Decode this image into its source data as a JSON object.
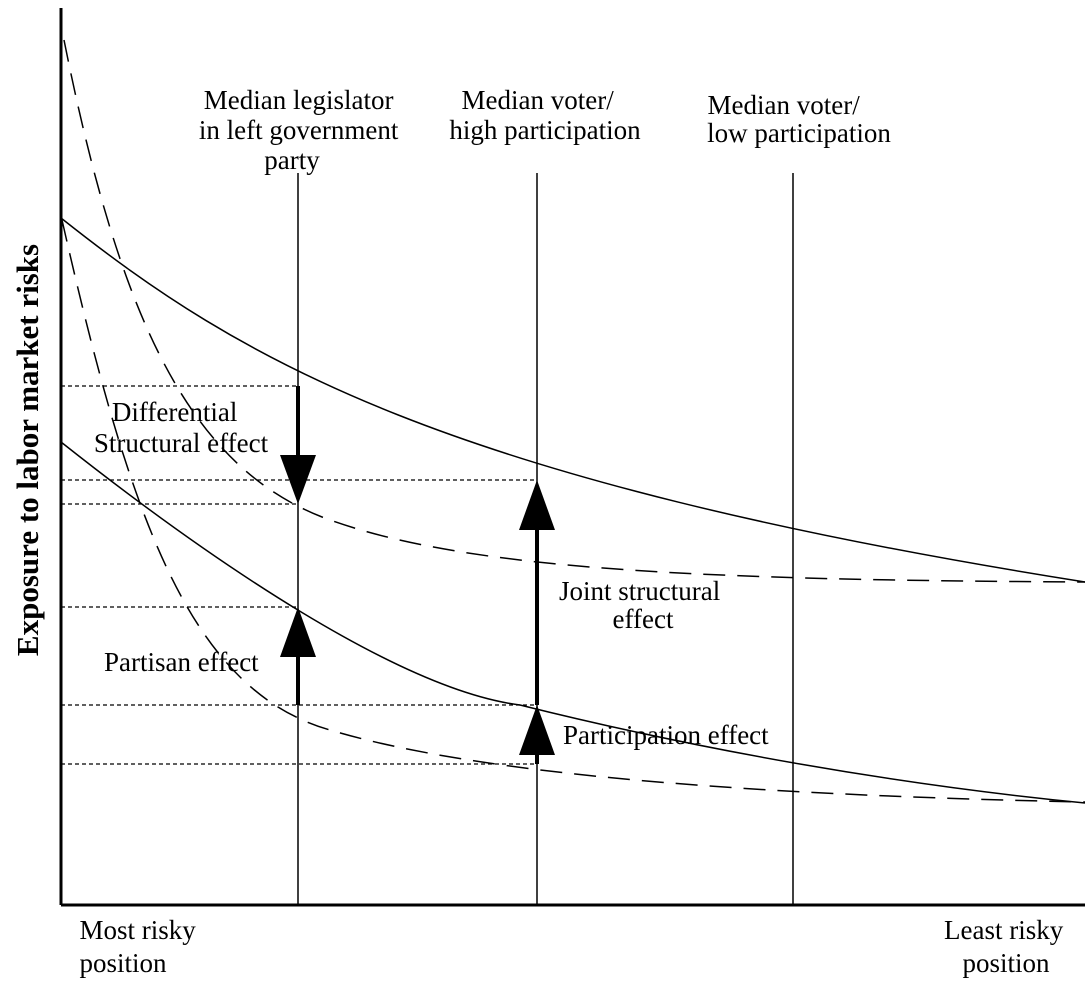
{
  "y_axis_label": "Exposure to labor market risks",
  "x_axis": {
    "left_label": [
      "Most risky",
      "position"
    ],
    "right_label": [
      "Least risky",
      "position"
    ]
  },
  "reference_lines": [
    {
      "id": "legislator",
      "label": [
        "Median legislator",
        "in left government",
        "party"
      ]
    },
    {
      "id": "high",
      "label": [
        "Median voter/",
        "high participation"
      ]
    },
    {
      "id": "low",
      "label": [
        "Median voter/",
        "low participation"
      ]
    }
  ],
  "effects": {
    "differential": [
      "Differential",
      "Structural effect"
    ],
    "joint": [
      "Joint structural",
      "effect"
    ],
    "partisan": "Partisan effect",
    "participation": "Participation effect"
  },
  "line_styles": {
    "solid_curves": "solid",
    "dashed_curves": "dashed",
    "guides": "dotted"
  }
}
